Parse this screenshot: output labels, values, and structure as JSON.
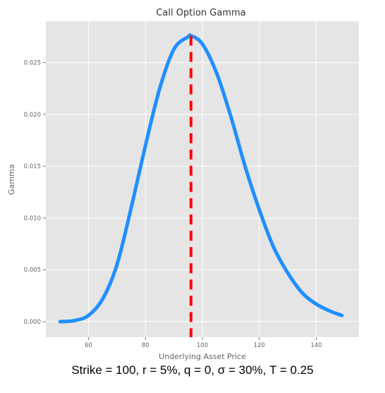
{
  "chart_data": {
    "type": "line",
    "title": "Call Option Gamma",
    "xlabel": "Underlying Asset Price",
    "ylabel": "Gamma",
    "xlim": [
      45,
      155
    ],
    "ylim": [
      -0.0015,
      0.029
    ],
    "xticks": [
      60,
      80,
      100,
      120,
      140
    ],
    "yticks": [
      0.0,
      0.005,
      0.01,
      0.015,
      0.02,
      0.025
    ],
    "ytick_labels": [
      "0.000",
      "0.005",
      "0.010",
      "0.015",
      "0.020",
      "0.025"
    ],
    "grid": true,
    "series": [
      {
        "color": "#1f8fff",
        "x": [
          50,
          55,
          60,
          65,
          70,
          75,
          80,
          85,
          90,
          95,
          96,
          100,
          105,
          110,
          115,
          120,
          125,
          130,
          135,
          140,
          145,
          149
        ],
        "y": [
          0.0,
          0.0001,
          0.0006,
          0.0022,
          0.0055,
          0.011,
          0.017,
          0.0225,
          0.0263,
          0.0275,
          0.0276,
          0.0268,
          0.024,
          0.0198,
          0.015,
          0.0108,
          0.0072,
          0.0047,
          0.0028,
          0.0017,
          0.001,
          0.0006
        ]
      }
    ],
    "vline": {
      "x": 96,
      "color": "#ff0000",
      "style": "dashed"
    }
  },
  "caption": "Strike = 100, r = 5%, q = 0, σ = 30%, T = 0.25",
  "colors": {
    "plot_background": "#e5e5e5",
    "grid": "#ffffff",
    "curve": "#1f8fff",
    "vline": "#ff0000"
  }
}
